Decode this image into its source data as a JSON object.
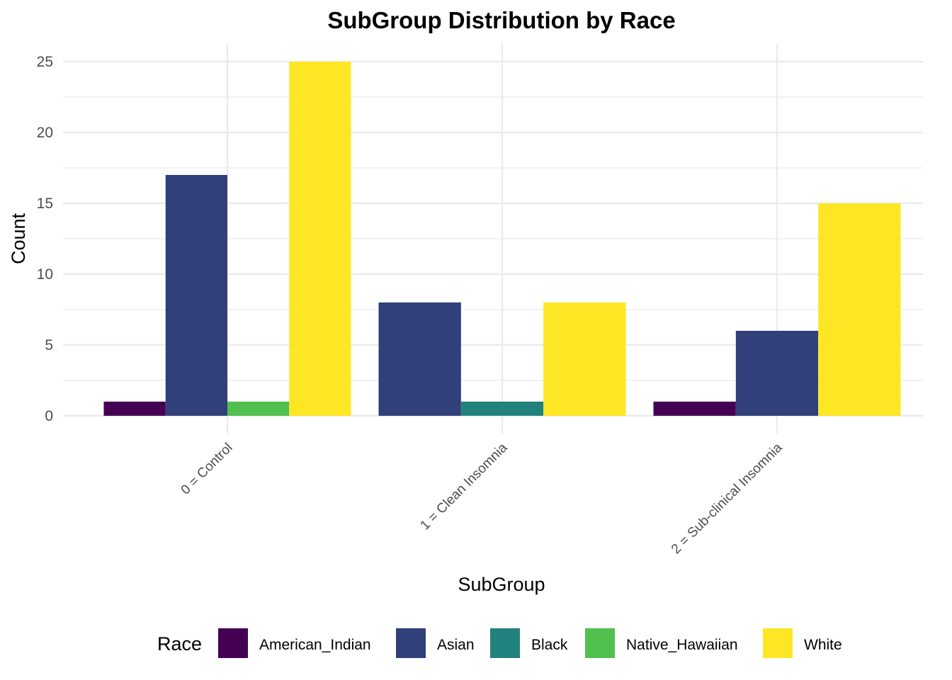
{
  "chart_data": {
    "type": "bar",
    "title": "SubGroup Distribution by Race",
    "xlabel": "SubGroup",
    "ylabel": "Count",
    "categories": [
      "0 = Control",
      "1 = Clean Insomnia",
      "2 = Sub-clinical Insomnia"
    ],
    "ylim": [
      0,
      26
    ],
    "yticks": [
      0,
      5,
      10,
      15,
      20,
      25
    ],
    "grid": true,
    "legend": {
      "title": "Race",
      "placement": "bottom"
    },
    "series": [
      {
        "name": "American_Indian",
        "color": "#440154",
        "values": [
          1,
          null,
          1
        ]
      },
      {
        "name": "Asian",
        "color": "#31407B",
        "values": [
          17,
          8,
          6
        ]
      },
      {
        "name": "Black",
        "color": "#21817D",
        "values": [
          null,
          1,
          null
        ]
      },
      {
        "name": "Native_Hawaiian",
        "color": "#52C04E",
        "values": [
          1,
          null,
          null
        ]
      },
      {
        "name": "White",
        "color": "#FDE725",
        "values": [
          25,
          8,
          15
        ]
      }
    ]
  }
}
